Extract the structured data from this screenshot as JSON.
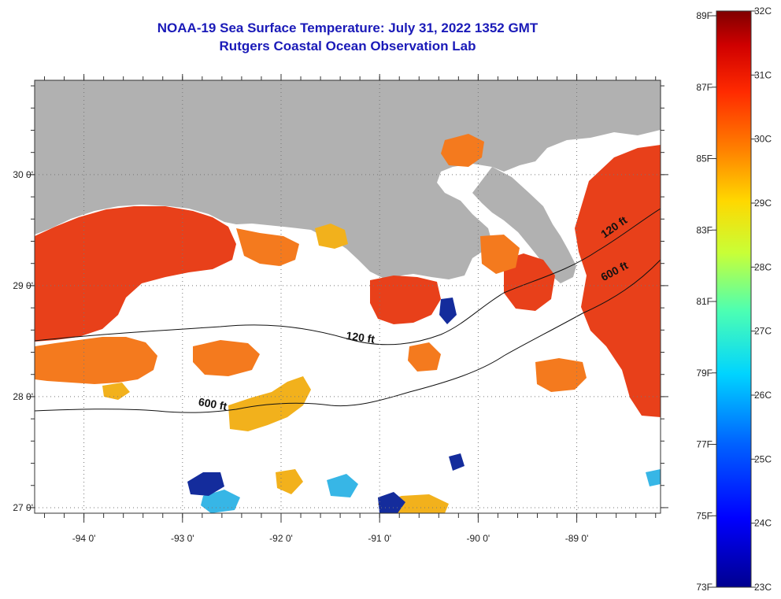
{
  "title": {
    "line1": "NOAA-19 Sea Surface Temperature:  July 31, 2022 1352 GMT",
    "line2": "Rutgers Coastal Ocean Observation Lab"
  },
  "colors": {
    "land": "#b1b1b1",
    "title": "#1a1ab8",
    "ocean_no_data": "#ffffff",
    "sst_hot": "#e8401a",
    "sst_warm": "#f47a1e",
    "sst_mid": "#f2c21c",
    "sst_cool": "#2a6ee0",
    "sst_cold": "#142c9c"
  },
  "map": {
    "lon_range": [
      -94.5,
      -88.15
    ],
    "lat_range": [
      26.95,
      30.85
    ],
    "lon_ticks": [
      {
        "value": -94,
        "label": "-94 0'"
      },
      {
        "value": -93,
        "label": "-93 0'"
      },
      {
        "value": -92,
        "label": "-92 0'"
      },
      {
        "value": -91,
        "label": "-91 0'"
      },
      {
        "value": -90,
        "label": "-90 0'"
      },
      {
        "value": -89,
        "label": "-89 0'"
      }
    ],
    "lat_ticks": [
      {
        "value": 30,
        "label": "30 0'"
      },
      {
        "value": 29,
        "label": "29 0'"
      },
      {
        "value": 28,
        "label": "28 0'"
      },
      {
        "value": 27,
        "label": "27 0'"
      }
    ],
    "grid": "dotted",
    "contours": [
      {
        "label": "120 ft",
        "label_lon": -91.2,
        "label_lat": 28.5
      },
      {
        "label": "120 ft",
        "label_lon": -88.6,
        "label_lat": 29.5
      },
      {
        "label": "600 ft",
        "label_lon": -92.7,
        "label_lat": 27.9
      },
      {
        "label": "600 ft",
        "label_lon": -88.6,
        "label_lat": 29.1
      }
    ]
  },
  "colorbar": {
    "fahrenheit_labels": [
      "89F",
      "87F",
      "85F",
      "83F",
      "81F",
      "79F",
      "77F",
      "75F",
      "73F"
    ],
    "celsius_labels": [
      "32C",
      "31C",
      "30C",
      "29C",
      "28C",
      "27C",
      "26C",
      "25C",
      "24C",
      "23C"
    ],
    "range_c": [
      23,
      32
    ]
  }
}
